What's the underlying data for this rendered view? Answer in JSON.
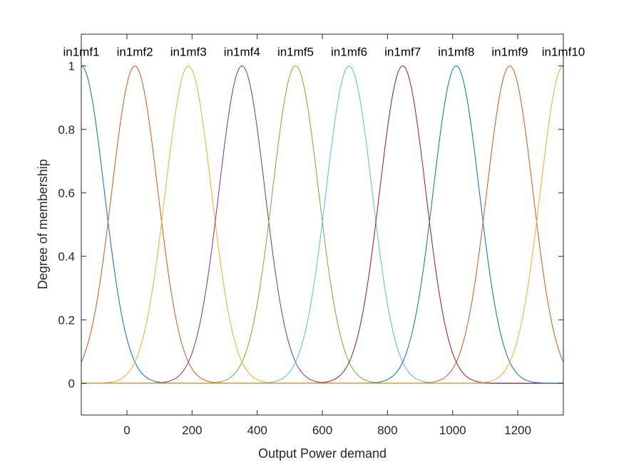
{
  "chart_data": {
    "type": "line",
    "xlabel": "Output Power demand",
    "ylabel": "Degree of membership",
    "xlim": [
      -140,
      1340
    ],
    "ylim": [
      -0.1,
      1.1
    ],
    "xticks": [
      0,
      200,
      400,
      600,
      800,
      1000,
      1200
    ],
    "yticks": [
      0,
      0.2,
      0.4,
      0.6,
      0.8,
      1
    ],
    "xtick_labels": [
      "0",
      "200",
      "400",
      "600",
      "800",
      "1000",
      "1200"
    ],
    "ytick_labels": [
      "0",
      "0.2",
      "0.4",
      "0.6",
      "0.8",
      "1"
    ],
    "grid": false,
    "membership_function": "gaussian",
    "sigma": 70.7,
    "series": [
      {
        "name": "in1mf1",
        "center": -140,
        "color": "#0072BD"
      },
      {
        "name": "in1mf2",
        "center": 24.4,
        "color": "#D95319"
      },
      {
        "name": "in1mf3",
        "center": 188.9,
        "color": "#EDB120"
      },
      {
        "name": "in1mf4",
        "center": 353.3,
        "color": "#7E2F8E"
      },
      {
        "name": "in1mf5",
        "center": 517.8,
        "color": "#77AC30"
      },
      {
        "name": "in1mf6",
        "center": 682.2,
        "color": "#4DBEEE"
      },
      {
        "name": "in1mf7",
        "center": 846.7,
        "color": "#A2142F"
      },
      {
        "name": "in1mf8",
        "center": 1011.1,
        "color": "#0072BD"
      },
      {
        "name": "in1mf9",
        "center": 1175.6,
        "color": "#D95319"
      },
      {
        "name": "in1mf10",
        "center": 1340,
        "color": "#EDB120"
      }
    ]
  }
}
